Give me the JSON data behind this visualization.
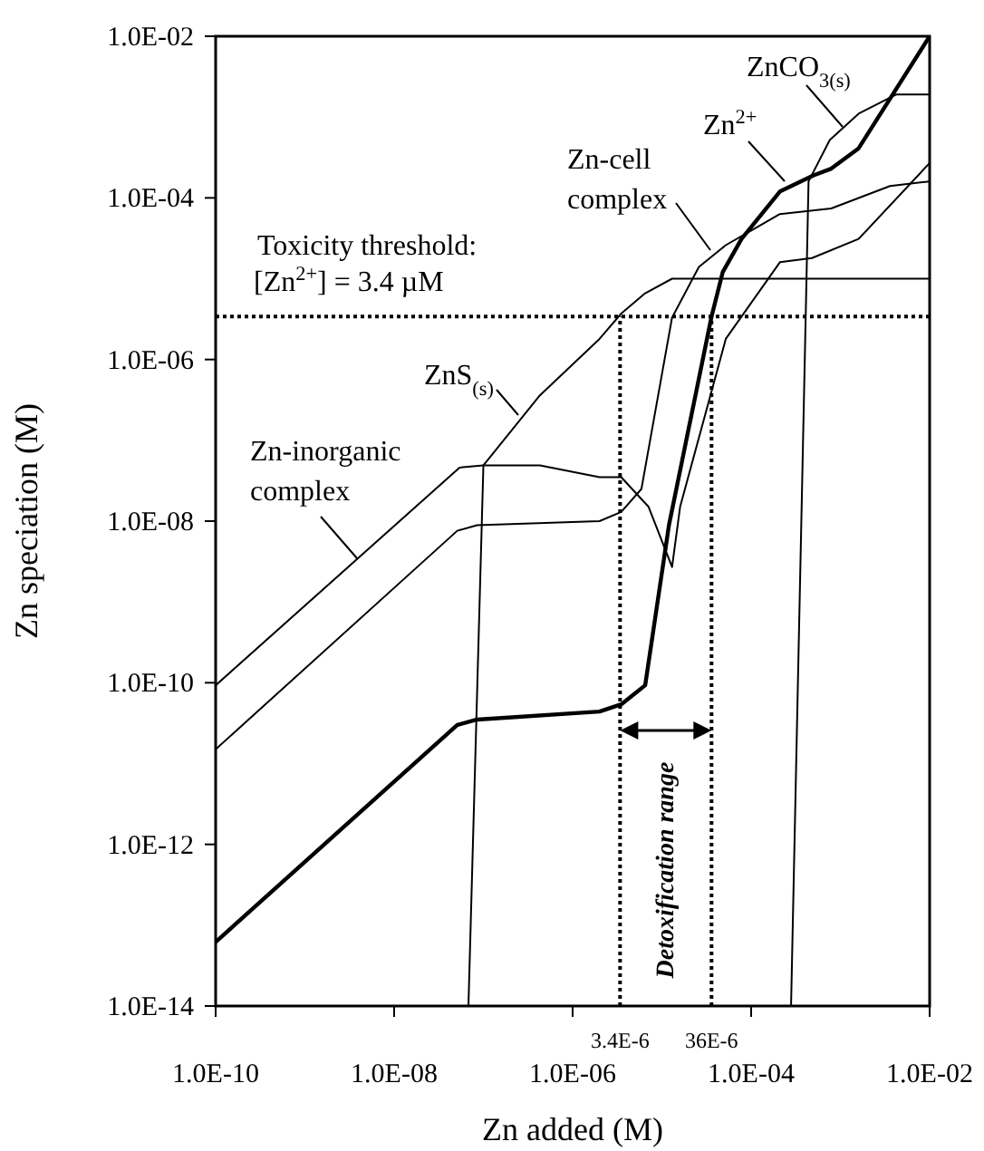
{
  "chart_data": {
    "type": "line",
    "xlabel": "Zn added (M)",
    "ylabel": "Zn speciation (M)",
    "log": "xy",
    "marker": "none",
    "line_style": "solid",
    "grid": false,
    "xlim": [
      1e-10,
      0.01
    ],
    "xticks": [
      {
        "value": 1e-10,
        "label": "1.0E-10"
      },
      {
        "value": 1e-08,
        "label": "1.0E-08"
      },
      {
        "value": 1e-06,
        "label": "1.0E-06"
      },
      {
        "value": 0.0001,
        "label": "1.0E-04"
      },
      {
        "value": 0.01,
        "label": "1.0E-02"
      }
    ],
    "ylim": [
      1e-14,
      0.01
    ],
    "yticks": [
      {
        "value": 1e-14,
        "label": "1.0E-14"
      },
      {
        "value": 1e-12,
        "label": "1.0E-12"
      },
      {
        "value": 1e-10,
        "label": "1.0E-10"
      },
      {
        "value": 1e-08,
        "label": "1.0E-08"
      },
      {
        "value": 1e-06,
        "label": "1.0E-06"
      },
      {
        "value": 0.0001,
        "label": "1.0E-04"
      },
      {
        "value": 0.01,
        "label": "1.0E-02"
      }
    ],
    "series": [
      {
        "name": "Zn$^{2+}$",
        "color": "#000000",
        "x": [
          1e-10,
          5.1e-08,
          8.5e-08,
          2e-06,
          3.5e-06,
          6.5e-06,
          1.2e-05,
          3.6e-05,
          4.8e-05,
          7.8e-05,
          0.00021,
          0.0005,
          0.00079,
          0.0016,
          0.01
        ],
        "values": [
          6.2e-14,
          3e-11,
          3.5e-11,
          4.4e-11,
          5.4e-11,
          9.3e-11,
          8.9e-09,
          3.4e-06,
          1.2e-05,
          3.1e-05,
          0.00012,
          0.00019,
          0.00023,
          0.00041,
          0.01
        ]
      },
      {
        "name": "Zn-inorganic complex",
        "color": "#000000",
        "x": [
          1e-10,
          5.4e-08,
          1e-07,
          4.3e-07,
          2e-06,
          3.5e-06,
          7.1e-06,
          1.3e-05,
          1.6e-05,
          5.2e-05,
          0.00021,
          0.00048,
          0.0016,
          0.01
        ],
        "values": [
          9.3e-11,
          4.6e-08,
          4.9e-08,
          4.9e-08,
          3.5e-08,
          3.5e-08,
          1.5e-08,
          2.7e-09,
          1.5e-08,
          1.8e-06,
          1.6e-05,
          1.8e-05,
          3.1e-05,
          0.00027
        ]
      },
      {
        "name": "Zn-cell complex",
        "color": "#000000",
        "x": [
          1e-10,
          5.1e-08,
          8.5e-08,
          2e-06,
          3.5e-06,
          5.9e-06,
          1.3e-05,
          2.6e-05,
          5.2e-05,
          0.00021,
          0.00079,
          0.0036,
          0.01
        ],
        "values": [
          1.5e-11,
          7.6e-09,
          8.9e-09,
          1e-08,
          1.3e-08,
          2.5e-08,
          3.3e-06,
          1.4e-05,
          2.6e-05,
          6.3e-05,
          7.4e-05,
          0.00014,
          0.00016
        ]
      },
      {
        "name": "ZnS$_{(s)}$",
        "color": "#000000",
        "x": [
          6.8e-08,
          1e-07,
          4.3e-07,
          2e-06,
          3.5e-06,
          6.5e-06,
          1.3e-05,
          0.01
        ],
        "values": [
          1e-14,
          4.9e-08,
          3.6e-07,
          1.8e-06,
          3.7e-06,
          6.6e-06,
          1e-05,
          1e-05
        ]
      },
      {
        "name": "ZnCO$_{3(s)}$",
        "color": "#000000",
        "x": [
          0.00028,
          0.00044,
          0.00076,
          0.0016,
          0.0042,
          0.01
        ],
        "values": [
          1e-14,
          0.00016,
          0.00052,
          0.0011,
          0.0019,
          0.0019
        ]
      }
    ],
    "ref_lines": [
      {
        "axis": "y",
        "value": 3.4e-06,
        "label": "Toxicity threshold:\n[Zn$^{2+}$] = 3.4 µM",
        "color": "#000000",
        "line_style": "dotted"
      },
      {
        "axis": "x",
        "value": 3.4e-06,
        "label": "3.4E-6",
        "color": "#000000",
        "line_style": "dotted"
      },
      {
        "axis": "x",
        "value": 3.6e-05,
        "label": "36E-6",
        "color": "#000000",
        "line_style": "dotted"
      }
    ],
    "annotations": [
      "Detoxification range"
    ]
  }
}
